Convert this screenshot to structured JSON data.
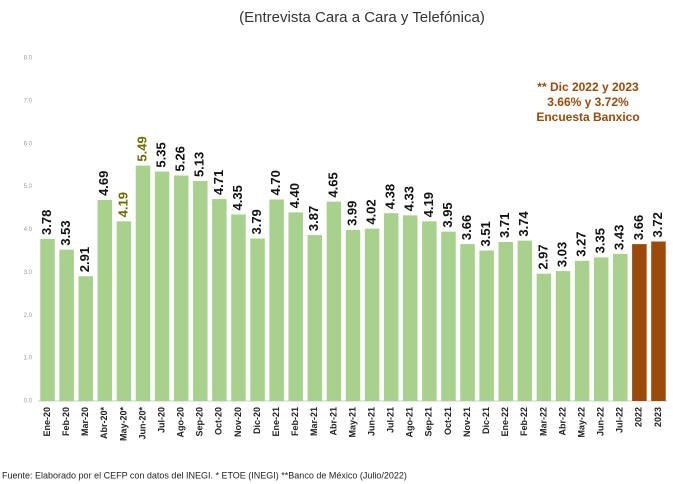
{
  "chart_data": {
    "type": "bar",
    "title": "(Entrevista Cara a Cara y Telefónica)",
    "annotation": [
      "** Dic 2022 y 2023",
      "3.66% y 3.72%",
      "Encuesta Banxico"
    ],
    "source": "Fuente: Elaborado por el CEFP con datos del INEGI.  * ETOE (INEGI) **Banco de México (Julio/2022)",
    "categories": [
      "Ene-20",
      "Feb-20",
      "Mar-20",
      "Abr-20*",
      "May-20*",
      "Jun-20*",
      "Jul-20",
      "Ago-20",
      "Sep-20",
      "Oct-20",
      "Nov-20",
      "Dic-20",
      "Ene-21",
      "Feb-21",
      "Mar-21",
      "Abr-21",
      "May-21",
      "Jun-21",
      "Jul-21",
      "Ago-21",
      "Sep-21",
      "Oct-21",
      "Nov-21",
      "Dic-21",
      "Ene-22",
      "Feb-22",
      "Mar-22",
      "Abr-22",
      "May-22",
      "Jun-22",
      "Jul-22",
      "2022",
      "2023"
    ],
    "values": [
      3.78,
      3.53,
      2.91,
      4.69,
      4.19,
      5.49,
      5.35,
      5.26,
      5.13,
      4.71,
      4.35,
      3.79,
      4.7,
      4.4,
      3.87,
      4.65,
      3.99,
      4.02,
      4.38,
      4.33,
      4.19,
      3.95,
      3.66,
      3.51,
      3.71,
      3.74,
      2.97,
      3.03,
      3.27,
      3.35,
      3.43,
      3.66,
      3.72
    ],
    "value_labels": [
      "3.78",
      "3.53",
      "2.91",
      "4.69",
      "4.19",
      "5.49",
      "5.35",
      "5.26",
      "5.13",
      "4.71",
      "4.35",
      "3.79",
      "4.70",
      "4.40",
      "3.87",
      "4.65",
      "3.99",
      "4.02",
      "4.38",
      "4.33",
      "4.19",
      "3.95",
      "3.66",
      "3.51",
      "3.71",
      "3.74",
      "2.97",
      "3.03",
      "3.27",
      "3.35",
      "3.43",
      "3.66",
      "3.72"
    ],
    "colors": [
      "#a9d18e",
      "#a9d18e",
      "#a9d18e",
      "#a9d18e",
      "#a9d18e",
      "#a9d18e",
      "#a9d18e",
      "#a9d18e",
      "#a9d18e",
      "#a9d18e",
      "#a9d18e",
      "#a9d18e",
      "#a9d18e",
      "#a9d18e",
      "#a9d18e",
      "#a9d18e",
      "#a9d18e",
      "#a9d18e",
      "#a9d18e",
      "#a9d18e",
      "#a9d18e",
      "#a9d18e",
      "#a9d18e",
      "#a9d18e",
      "#a9d18e",
      "#a9d18e",
      "#a9d18e",
      "#a9d18e",
      "#a9d18e",
      "#a9d18e",
      "#a9d18e",
      "#9c4a0a",
      "#9c4a0a"
    ],
    "value_label_colors": [
      "#111",
      "#111",
      "#111",
      "#111",
      "#6b6b00",
      "#6b6b00",
      "#111",
      "#111",
      "#111",
      "#111",
      "#111",
      "#111",
      "#111",
      "#111",
      "#111",
      "#111",
      "#111",
      "#111",
      "#111",
      "#111",
      "#111",
      "#111",
      "#111",
      "#111",
      "#111",
      "#111",
      "#111",
      "#111",
      "#111",
      "#111",
      "#111",
      "#111",
      "#111"
    ],
    "ylim": [
      0,
      8
    ],
    "yticks": [
      {
        "value": 0,
        "label": "0.0"
      },
      {
        "value": 1,
        "label": "1.0"
      },
      {
        "value": 2,
        "label": "2.0"
      },
      {
        "value": 3,
        "label": "3.0"
      },
      {
        "value": 4,
        "label": "4.0"
      },
      {
        "value": 5,
        "label": "5.0"
      },
      {
        "value": 6,
        "label": "6.0"
      },
      {
        "value": 7,
        "label": "7.0"
      },
      {
        "value": 8,
        "label": "8.0"
      }
    ],
    "grid": false
  }
}
